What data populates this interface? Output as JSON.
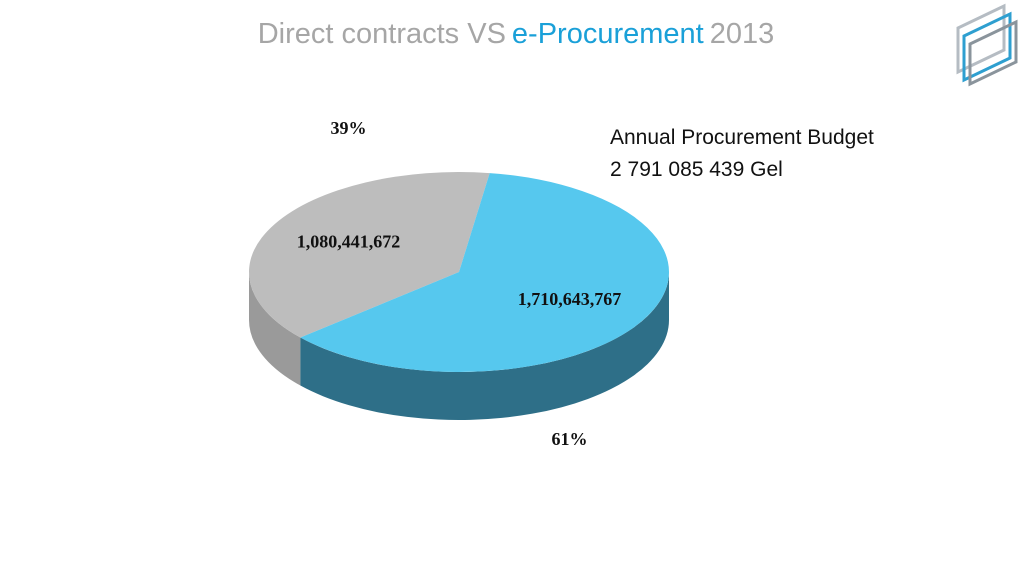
{
  "chart_data": {
    "type": "pie",
    "title_parts": [
      "Direct contracts VS",
      "e-Procurement",
      "2013"
    ],
    "values": [
      1080441672,
      1710643767
    ],
    "value_labels": [
      "1,080,441,672",
      "1,710,643,767"
    ],
    "percents": [
      39,
      61
    ],
    "percent_labels": [
      "39%",
      "61%"
    ],
    "colors": [
      "#bdbdbd",
      "#56c8ee"
    ],
    "side_colors": [
      "#9a9a9a",
      "#2e6f88"
    ],
    "annotation": [
      "Annual Procurement Budget",
      "2 791 085 439 Gel"
    ]
  }
}
